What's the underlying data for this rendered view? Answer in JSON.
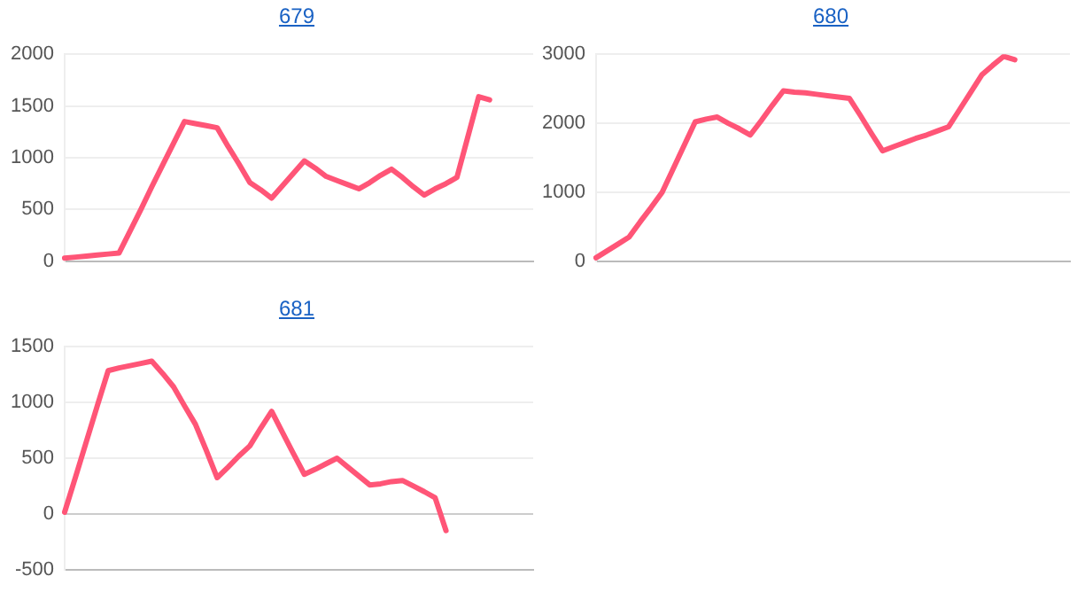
{
  "chart_data": [
    {
      "type": "line",
      "title": "679",
      "categories": [
        null,
        null,
        null,
        null,
        null,
        null,
        null,
        null,
        null,
        null,
        null,
        null,
        null,
        null,
        null,
        null,
        null,
        null,
        null,
        null,
        null,
        null,
        null,
        null,
        null,
        null,
        null,
        null,
        null,
        null,
        null,
        null,
        null,
        null,
        null,
        null,
        null,
        null,
        null,
        null,
        null,
        null,
        null,
        null
      ],
      "ylim": [
        0,
        2000
      ],
      "yticks": [
        0,
        500,
        1000,
        1500,
        2000
      ],
      "grid": "y",
      "tick_labels": "y",
      "marker": "none",
      "legend": false,
      "series": [
        {
          "color": "#ff5577",
          "values": [
            30,
            40,
            50,
            60,
            70,
            80,
            290,
            500,
            720,
            930,
            1140,
            1350,
            1330,
            1310,
            1290,
            1110,
            940,
            760,
            690,
            610,
            730,
            850,
            970,
            900,
            820,
            780,
            740,
            700,
            760,
            830,
            890,
            810,
            720,
            640,
            700,
            750,
            810,
            1200,
            1590,
            1560,
            null,
            null,
            null,
            null
          ]
        }
      ]
    },
    {
      "type": "line",
      "title": "680",
      "categories": [
        null,
        null,
        null,
        null,
        null,
        null,
        null,
        null,
        null,
        null,
        null,
        null,
        null,
        null,
        null,
        null,
        null,
        null,
        null,
        null,
        null,
        null,
        null,
        null,
        null,
        null,
        null,
        null,
        null,
        null,
        null,
        null,
        null,
        null,
        null,
        null,
        null,
        null,
        null,
        null,
        null,
        null,
        null,
        null
      ],
      "ylim": [
        0,
        3000
      ],
      "yticks": [
        0,
        1000,
        2000,
        3000
      ],
      "grid": "y",
      "tick_labels": "y",
      "marker": "none",
      "legend": false,
      "series": [
        {
          "color": "#ff5577",
          "values": [
            50,
            150,
            250,
            350,
            570,
            780,
            1000,
            1340,
            1680,
            2020,
            2060,
            2090,
            2000,
            1920,
            1830,
            2040,
            2260,
            2470,
            2450,
            2440,
            2420,
            2400,
            2380,
            2360,
            2110,
            1850,
            1600,
            1660,
            1720,
            1780,
            1830,
            1890,
            1950,
            2200,
            2450,
            2700,
            2840,
            2970,
            2920,
            null,
            null,
            null,
            null,
            null
          ]
        }
      ]
    },
    {
      "type": "line",
      "title": "681",
      "categories": [
        null,
        null,
        null,
        null,
        null,
        null,
        null,
        null,
        null,
        null,
        null,
        null,
        null,
        null,
        null,
        null,
        null,
        null,
        null,
        null,
        null,
        null,
        null,
        null,
        null,
        null,
        null,
        null,
        null,
        null,
        null,
        null,
        null,
        null,
        null,
        null,
        null,
        null,
        null,
        null,
        null,
        null,
        null,
        null
      ],
      "ylim": [
        -500,
        1500
      ],
      "yticks": [
        -500,
        0,
        500,
        1000,
        1500
      ],
      "grid": "y",
      "tick_labels": "y",
      "marker": "none",
      "legend": false,
      "series": [
        {
          "color": "#ff5577",
          "values": [
            15,
            330,
            650,
            970,
            1285,
            1310,
            1330,
            1350,
            1370,
            1260,
            1140,
            970,
            805,
            570,
            325,
            420,
            520,
            610,
            770,
            920,
            730,
            540,
            355,
            400,
            450,
            500,
            420,
            340,
            260,
            270,
            290,
            300,
            250,
            200,
            145,
            -150,
            null,
            null,
            null,
            null,
            null,
            null,
            null,
            null
          ]
        }
      ]
    }
  ]
}
